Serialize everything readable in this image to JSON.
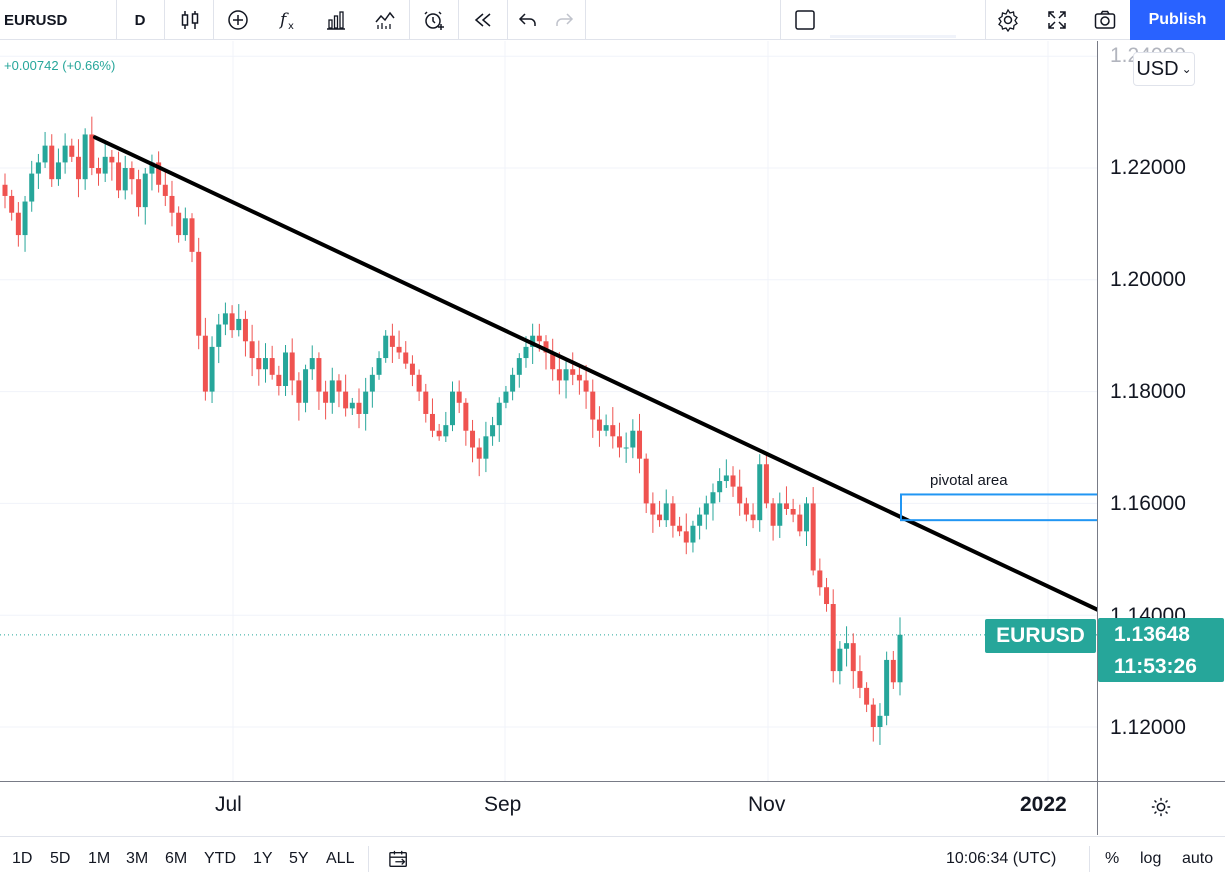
{
  "toolbar": {
    "symbol": "EURUSD",
    "interval": "D",
    "publish_label": "Publish",
    "icons": [
      "candles-icon",
      "add-indicator-icon",
      "fx-icon",
      "bars-icon",
      "compare-icon",
      "alert-icon",
      "replay-icon",
      "undo-icon",
      "redo-icon",
      "layout-square-icon",
      "settings-icon",
      "fullscreen-icon",
      "camera-icon"
    ]
  },
  "header": {
    "change": "+0.00742 (+0.66%)",
    "currency": "USD"
  },
  "price_scale": {
    "ticks": [
      "1.22000",
      "1.20000",
      "1.18000",
      "1.16000",
      "1.14000",
      "1.12000"
    ],
    "top_partial": "1.24000"
  },
  "last_price": {
    "symbol_tag": "EURUSD",
    "price": "1.13648",
    "countdown": "11:53:26"
  },
  "annotation": {
    "text": "pivotal area"
  },
  "time_scale": {
    "labels": [
      "Jul",
      "Sep",
      "Nov"
    ],
    "year": "2022"
  },
  "bottom_bar": {
    "ranges": [
      "1D",
      "5D",
      "1M",
      "3M",
      "6M",
      "YTD",
      "1Y",
      "5Y",
      "ALL"
    ],
    "clock": "10:06:34 (UTC)",
    "percent": "%",
    "log": "log",
    "auto": "auto"
  },
  "colors": {
    "up": "#26a69a",
    "down": "#ef5350",
    "trendline": "#000000",
    "pivot_box": "#2196f3",
    "publish": "#2962ff"
  },
  "chart_data": {
    "type": "candlestick",
    "instrument": "EURUSD",
    "timeframe": "D",
    "ylim": [
      1.11,
      1.24
    ],
    "yticks": [
      1.12,
      1.14,
      1.16,
      1.18,
      1.2,
      1.22
    ],
    "xlabels": [
      "Jul",
      "Sep",
      "Nov",
      "2022"
    ],
    "last_price": 1.13648,
    "close_path": [
      1.215,
      1.212,
      1.208,
      1.214,
      1.219,
      1.221,
      1.224,
      1.218,
      1.221,
      1.224,
      1.222,
      1.218,
      1.226,
      1.22,
      1.219,
      1.222,
      1.221,
      1.216,
      1.22,
      1.218,
      1.213,
      1.219,
      1.221,
      1.217,
      1.215,
      1.212,
      1.208,
      1.211,
      1.205,
      1.19,
      1.18,
      1.188,
      1.192,
      1.194,
      1.191,
      1.193,
      1.189,
      1.186,
      1.184,
      1.186,
      1.183,
      1.181,
      1.187,
      1.182,
      1.178,
      1.184,
      1.186,
      1.18,
      1.178,
      1.182,
      1.18,
      1.177,
      1.178,
      1.176,
      1.18,
      1.183,
      1.186,
      1.19,
      1.188,
      1.187,
      1.185,
      1.183,
      1.18,
      1.176,
      1.173,
      1.172,
      1.174,
      1.18,
      1.178,
      1.173,
      1.17,
      1.168,
      1.172,
      1.174,
      1.178,
      1.18,
      1.183,
      1.186,
      1.188,
      1.19,
      1.189,
      1.187,
      1.184,
      1.182,
      1.184,
      1.183,
      1.182,
      1.18,
      1.175,
      1.173,
      1.174,
      1.172,
      1.17,
      1.17,
      1.173,
      1.168,
      1.16,
      1.158,
      1.157,
      1.16,
      1.156,
      1.155,
      1.153,
      1.156,
      1.158,
      1.16,
      1.162,
      1.164,
      1.165,
      1.163,
      1.16,
      1.158,
      1.157,
      1.167,
      1.16,
      1.156,
      1.16,
      1.159,
      1.158,
      1.155,
      1.16,
      1.148,
      1.145,
      1.142,
      1.13,
      1.134,
      1.135,
      1.13,
      1.127,
      1.124,
      1.12,
      1.122,
      1.132,
      1.128,
      1.1365
    ],
    "trendline": [
      {
        "date": "late May 2021",
        "price": 1.2255
      },
      {
        "date": "early Jan 2022",
        "price": 1.1395
      }
    ],
    "pivot_box": {
      "label": "pivotal area",
      "price_top": 1.1616,
      "price_bottom": 1.157
    }
  }
}
